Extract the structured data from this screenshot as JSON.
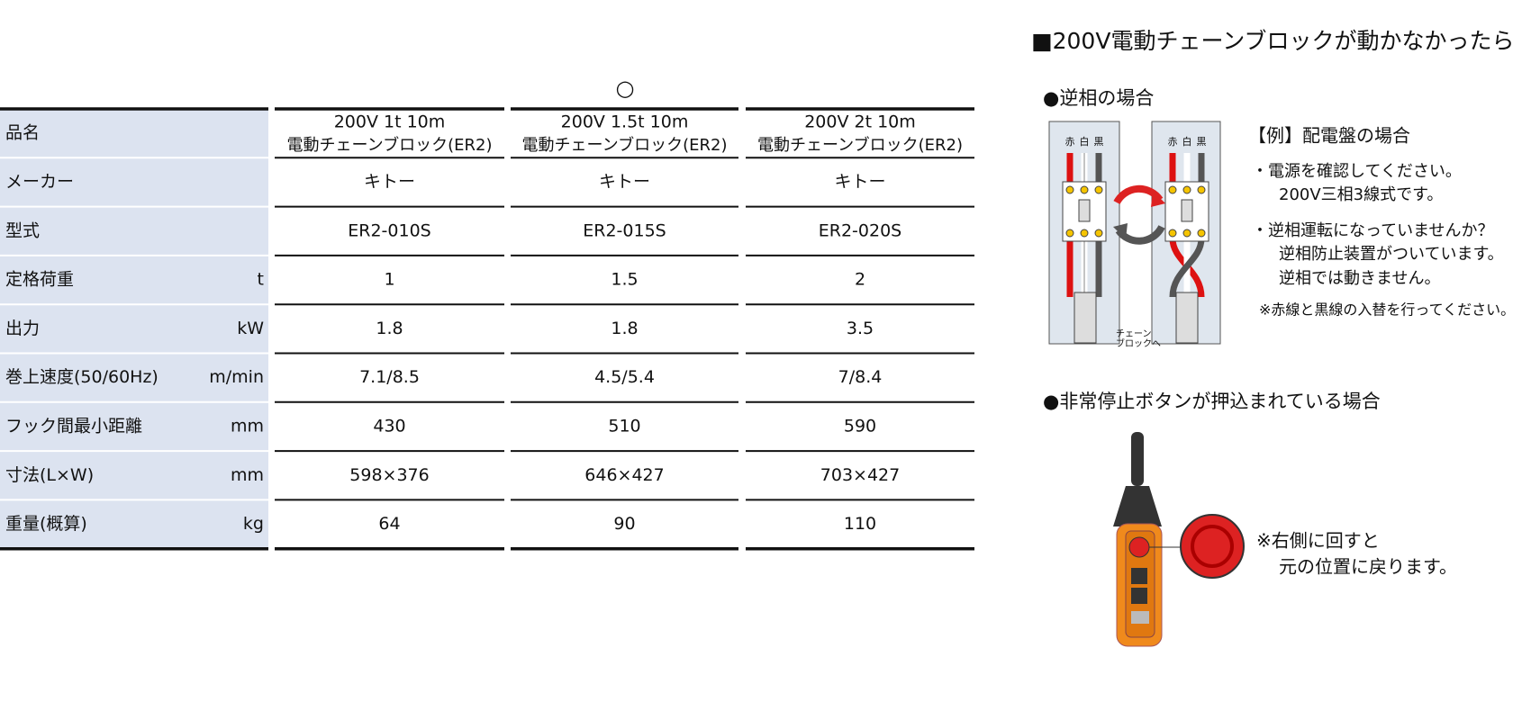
{
  "table": {
    "marker": "○",
    "header_label": "品名",
    "columns": [
      {
        "line1": "200V 1t 10m",
        "line2": "電動チェーンブロック(ER2)"
      },
      {
        "line1": "200V 1.5t 10m",
        "line2": "電動チェーンブロック(ER2)"
      },
      {
        "line1": "200V 2t 10m",
        "line2": "電動チェーンブロック(ER2)"
      }
    ],
    "rows": [
      {
        "label": "メーカー",
        "values": [
          "キトー",
          "キトー",
          "キトー"
        ]
      },
      {
        "label": "型式",
        "values": [
          "ER2-010S",
          "ER2-015S",
          "ER2-020S"
        ]
      },
      {
        "label": "定格荷重",
        "unit": "t",
        "values": [
          1,
          1.5,
          2
        ]
      },
      {
        "label": "出力",
        "unit": "kW",
        "values": [
          1.8,
          1.8,
          3.5
        ]
      },
      {
        "label": "巻上速度(50/60Hz)",
        "unit": "m/min",
        "values": [
          "7.1/8.5",
          "4.5/5.4",
          "7/8.4"
        ]
      },
      {
        "label": "フック間最小距離",
        "unit": "mm",
        "values": [
          430,
          510,
          590
        ]
      },
      {
        "label": "寸法(L×W)",
        "unit": "mm",
        "values": [
          "598×376",
          "646×427",
          "703×427"
        ]
      },
      {
        "label": "重量(概算)",
        "unit": "kg",
        "values": [
          64,
          90,
          110
        ]
      }
    ]
  },
  "guide": {
    "title": "■200V電動チェーンブロックが動かなかったら",
    "reverse_phase": {
      "heading": "●逆相の場合",
      "wire_labels": [
        "赤",
        "白",
        "黒"
      ],
      "cable_label": [
        "チェーン",
        "ブロックへ"
      ],
      "example": "【例】配電盤の場合",
      "lines": [
        "・電源を確認してください。",
        "200V三相3線式です。",
        "・逆相運転になっていませんか？",
        "逆相防止装置がついています。",
        "逆相では動きません。",
        "※赤線と黒線の入替を行ってください。"
      ]
    },
    "emergency_stop": {
      "heading": "●非常停止ボタンが押込まれている場合",
      "lines": [
        "※右側に回すと",
        "元の位置に戻ります。"
      ]
    }
  }
}
